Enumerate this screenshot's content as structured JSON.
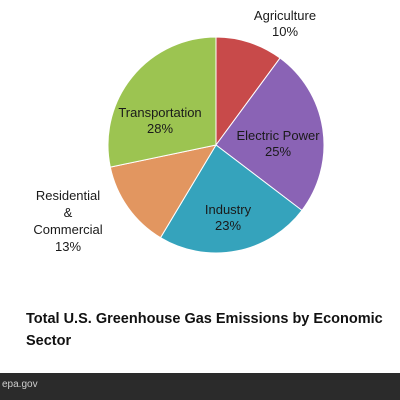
{
  "chart_data": {
    "type": "pie",
    "title": "Total U.S. Greenhouse Gas Emissions by Economic Sector",
    "slices": [
      {
        "label": [
          "Agriculture"
        ],
        "value": 10,
        "value_label": "10%",
        "color": "#c84a4a"
      },
      {
        "label": [
          "Electric Power"
        ],
        "value": 25,
        "value_label": "25%",
        "color": "#8a63b5"
      },
      {
        "label": [
          "Industry"
        ],
        "value": 23,
        "value_label": "23%",
        "color": "#35a3bc"
      },
      {
        "label": [
          "Residential",
          "&",
          "Commercial"
        ],
        "value": 13,
        "value_label": "13%",
        "color": "#e29660"
      },
      {
        "label": [
          "Transportation"
        ],
        "value": 28,
        "value_label": "28%",
        "color": "#9cc451"
      }
    ],
    "legend": "none"
  },
  "caption": {
    "line1": "Total U.S. Greenhouse Gas Emissions by Economic",
    "line2": "Sector"
  },
  "footer": {
    "source": "epa.gov",
    "background": "#2b2b2b"
  }
}
